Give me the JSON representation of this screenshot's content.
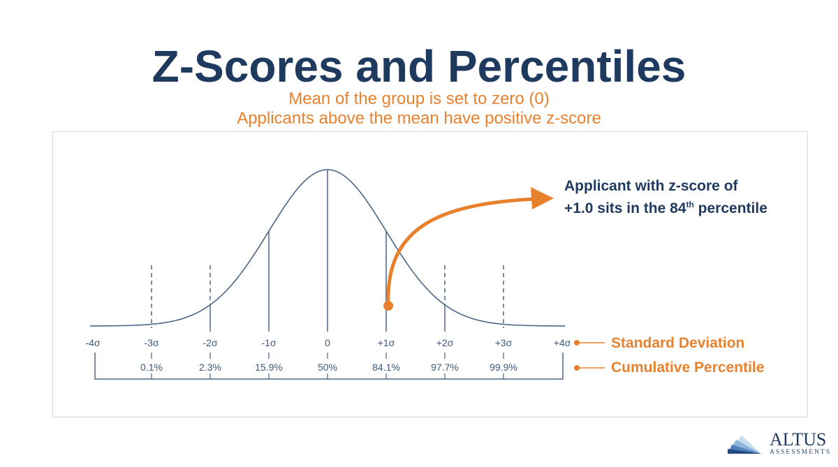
{
  "title": "Z-Scores and Percentiles",
  "subtitle": [
    "Mean of the group is set to zero (0)",
    "Applicants above the mean have positive z-score"
  ],
  "chart_data": {
    "type": "line",
    "description_curve": "normal distribution",
    "z": [
      -4,
      -3,
      -2,
      -1,
      0,
      1,
      2,
      3,
      4
    ],
    "sd_labels": [
      "-4σ",
      "-3σ",
      "-2σ",
      "-1σ",
      "0",
      "+1σ",
      "+2σ",
      "+3σ",
      "+4σ"
    ],
    "percentile_labels": [
      "0.1%",
      "2.3%",
      "15.9%",
      "50%",
      "84.1%",
      "97.7%",
      "99.9%"
    ],
    "highlight_z": 1.0
  },
  "annotation": {
    "line1": "Applicant with z-score of",
    "line2_pre": "+1.0 sits in the 84",
    "line2_sup": "th",
    "line2_post": " percentile"
  },
  "legend": {
    "sd": "Standard Deviation",
    "pct": "Cumulative Percentile"
  },
  "colors": {
    "navy": "#1f3a5f",
    "orange": "#e8812e",
    "curve": "#4a6585"
  },
  "logo": {
    "name": "ALTUS",
    "tagline": "ASSESSMENTS"
  }
}
